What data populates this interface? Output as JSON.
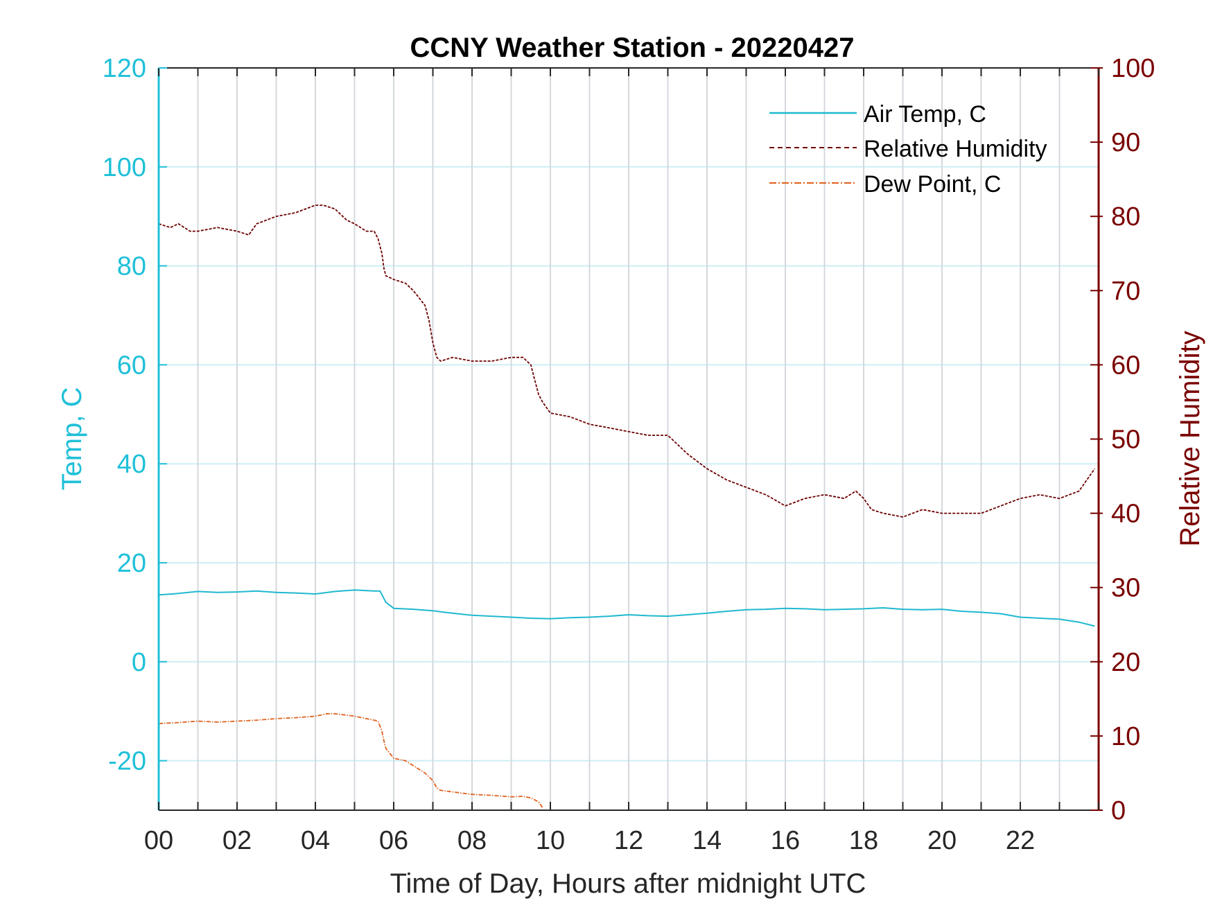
{
  "chart_data": {
    "type": "line",
    "title": "CCNY Weather Station - 20220427",
    "xlabel": "Time of Day, Hours after midnight UTC",
    "ylabel_left": "Temp, C",
    "ylabel_right": "Relative Humidity",
    "xlim": [
      0,
      24
    ],
    "ylim_left": [
      -30,
      120
    ],
    "ylim_right": [
      0,
      100
    ],
    "x_ticks": [
      0,
      2,
      4,
      6,
      8,
      10,
      12,
      14,
      16,
      18,
      20,
      22
    ],
    "x_tick_labels": [
      "00",
      "02",
      "04",
      "06",
      "08",
      "10",
      "12",
      "14",
      "16",
      "18",
      "20",
      "22"
    ],
    "y_left_ticks": [
      -20,
      0,
      20,
      40,
      60,
      80,
      100,
      120
    ],
    "y_left_tick_labels": [
      "-20",
      "0",
      "20",
      "40",
      "60",
      "80",
      "100",
      "120"
    ],
    "y_right_ticks": [
      0,
      10,
      20,
      30,
      40,
      50,
      60,
      70,
      80,
      90,
      100
    ],
    "y_right_tick_labels": [
      "0",
      "10",
      "20",
      "30",
      "40",
      "50",
      "60",
      "70",
      "80",
      "90",
      "100"
    ],
    "grid": true,
    "legend_position": "top-right",
    "colors": {
      "left_axis": "#1fc0d8",
      "right_axis": "#7a0000",
      "air_temp": "#1fb8d0",
      "humidity": "#6e0000",
      "dew_point": "#e0601a",
      "grid_vertical": "#d4d8dc",
      "grid_horizontal": "#cdeef5"
    },
    "series": [
      {
        "name": "Air Temp, C",
        "axis": "left",
        "style": "solid",
        "x": [
          0,
          0.5,
          1,
          1.5,
          2,
          2.5,
          3,
          3.5,
          4,
          4.5,
          5,
          5.5,
          5.65,
          5.8,
          6,
          6.5,
          7,
          7.5,
          8,
          8.5,
          9,
          9.5,
          10,
          10.5,
          11,
          11.5,
          12,
          12.5,
          13,
          13.5,
          14,
          14.5,
          15,
          15.5,
          16,
          16.5,
          17,
          17.5,
          18,
          18.5,
          19,
          19.5,
          20,
          20.5,
          21,
          21.5,
          22,
          22.5,
          23,
          23.5,
          23.9
        ],
        "y": [
          13.5,
          13.8,
          14.2,
          14.0,
          14.1,
          14.3,
          14.0,
          13.9,
          13.7,
          14.2,
          14.5,
          14.3,
          14.3,
          12.0,
          10.8,
          10.6,
          10.3,
          9.8,
          9.4,
          9.2,
          9.0,
          8.8,
          8.7,
          8.9,
          9.0,
          9.2,
          9.5,
          9.3,
          9.2,
          9.5,
          9.8,
          10.2,
          10.5,
          10.6,
          10.8,
          10.7,
          10.5,
          10.6,
          10.7,
          10.9,
          10.6,
          10.5,
          10.6,
          10.2,
          10.0,
          9.7,
          9.0,
          8.8,
          8.6,
          8.0,
          7.2
        ]
      },
      {
        "name": "Relative Humidity",
        "axis": "right",
        "style": "dashed",
        "x": [
          0,
          0.3,
          0.5,
          0.8,
          1,
          1.5,
          2,
          2.3,
          2.5,
          3,
          3.5,
          4,
          4.2,
          4.5,
          4.8,
          5,
          5.3,
          5.5,
          5.6,
          5.7,
          5.75,
          5.8,
          6,
          6.3,
          6.5,
          6.8,
          6.9,
          7.0,
          7.1,
          7.2,
          7.5,
          8,
          8.5,
          9,
          9.3,
          9.5,
          9.6,
          9.7,
          9.8,
          10,
          10.3,
          10.5,
          11,
          11.5,
          12,
          12.5,
          13,
          13.5,
          14,
          14.5,
          15,
          15.5,
          16,
          16.5,
          17,
          17.5,
          17.8,
          18,
          18.2,
          18.5,
          19,
          19.5,
          20,
          20.5,
          21,
          21.5,
          22,
          22.5,
          23,
          23.5,
          23.9
        ],
        "y": [
          79,
          78.5,
          79,
          78,
          78,
          78.5,
          78,
          77.5,
          79,
          80,
          80.5,
          81.5,
          81.5,
          81,
          79.5,
          79,
          78,
          78,
          77,
          75,
          73,
          72,
          71.5,
          71,
          70,
          68,
          66,
          63,
          61,
          60.5,
          61,
          60.5,
          60.5,
          61,
          61,
          60,
          58,
          56,
          55,
          53.5,
          53.2,
          53,
          52,
          51.5,
          51,
          50.5,
          50.5,
          48,
          46,
          44.5,
          43.5,
          42.5,
          41,
          42,
          42.5,
          42,
          43,
          42,
          40.5,
          40,
          39.5,
          40.5,
          40,
          40,
          40,
          41,
          42,
          42.5,
          42,
          43,
          46
        ]
      },
      {
        "name": "Dew Point, C",
        "axis": "left",
        "style": "dash-dot",
        "x": [
          0,
          0.5,
          1,
          1.5,
          2,
          2.5,
          3,
          3.5,
          4,
          4.3,
          4.5,
          5,
          5.3,
          5.5,
          5.6,
          5.7,
          5.75,
          5.8,
          6,
          6.3,
          6.5,
          6.8,
          7.0,
          7.1,
          7.2,
          7.5,
          8,
          8.5,
          9,
          9.3,
          9.5,
          9.7,
          9.8
        ],
        "y": [
          -12.5,
          -12.3,
          -12.0,
          -12.2,
          -12.0,
          -11.8,
          -11.5,
          -11.3,
          -11.0,
          -10.5,
          -10.5,
          -11.0,
          -11.5,
          -11.8,
          -12.0,
          -14.0,
          -16.0,
          -17.5,
          -19.5,
          -20.0,
          -21.0,
          -22.5,
          -24.0,
          -25.5,
          -26.0,
          -26.3,
          -26.8,
          -27.0,
          -27.3,
          -27.2,
          -27.5,
          -28.3,
          -29.5
        ]
      }
    ]
  }
}
